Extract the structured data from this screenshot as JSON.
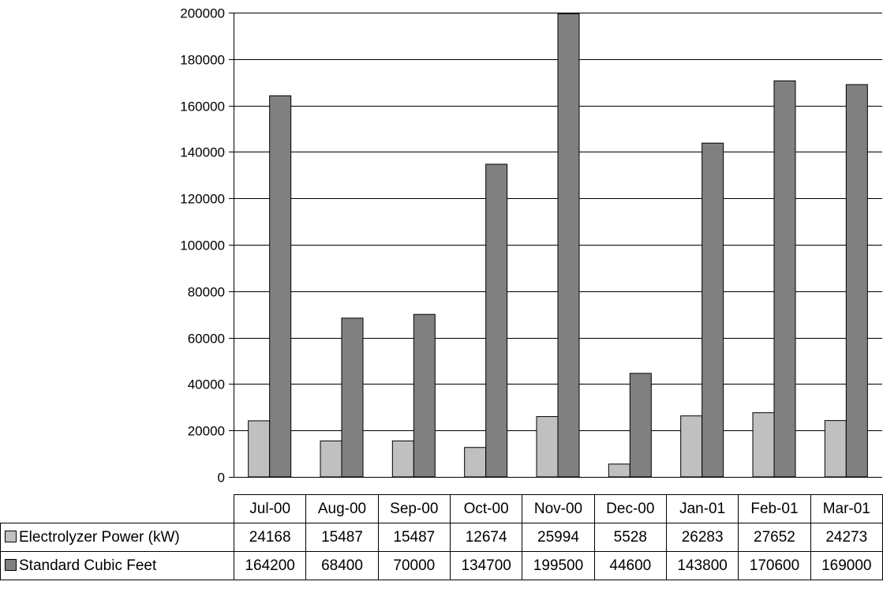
{
  "chart_data": {
    "type": "bar",
    "categories": [
      "Jul-00",
      "Aug-00",
      "Sep-00",
      "Oct-00",
      "Nov-00",
      "Dec-00",
      "Jan-01",
      "Feb-01",
      "Mar-01"
    ],
    "series": [
      {
        "name": "Electrolyzer Power (kW)",
        "color": "#c0c0c0",
        "values": [
          24168,
          15487,
          15487,
          12674,
          25994,
          5528,
          26283,
          27652,
          24273
        ]
      },
      {
        "name": "Standard Cubic Feet",
        "color": "#808080",
        "values": [
          164200,
          68400,
          70000,
          134700,
          199500,
          44600,
          143800,
          170600,
          169000
        ]
      }
    ],
    "ylim": [
      0,
      200000
    ],
    "yticks": [
      "0",
      "20000",
      "40000",
      "60000",
      "80000",
      "100000",
      "120000",
      "140000",
      "160000",
      "180000",
      "200000"
    ],
    "grid": true,
    "legend": "data-table"
  }
}
